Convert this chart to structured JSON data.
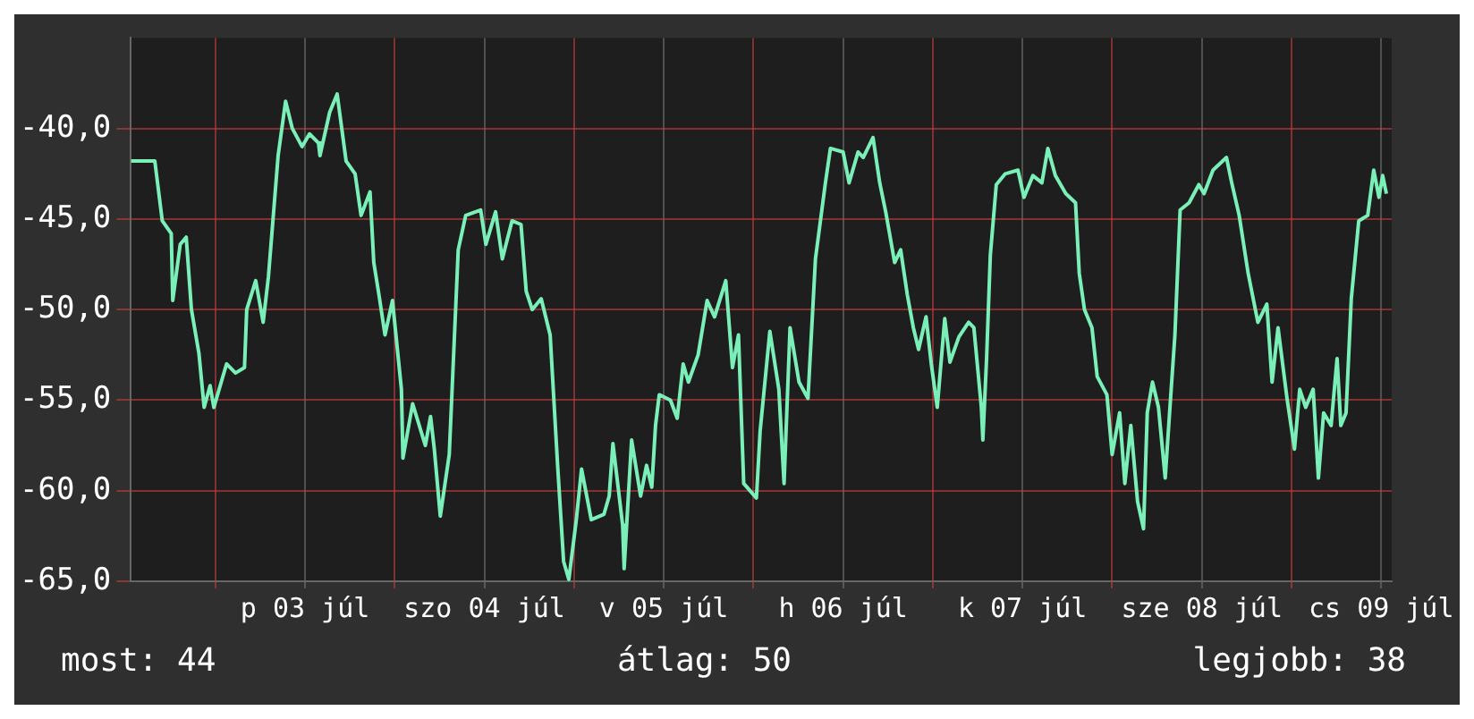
{
  "chart_data": {
    "type": "line",
    "annotations": [
      "most: 44",
      "átlag: 50",
      "legjobb: 38"
    ],
    "x": [
      "--07-02T12:42",
      "--07-02T15:54",
      "--07-02T16:54",
      "--07-02T18:06",
      "--07-02T18:18",
      "--07-02T19:18",
      "--07-02T20:06",
      "--07-02T20:48",
      "--07-02T21:48",
      "--07-02T22:30",
      "--07-02T23:18",
      "--07-02T23:48",
      "--07-03T01:30",
      "--07-03T02:42",
      "--07-03T03:54",
      "--07-03T04:12",
      "--07-03T05:24",
      "--07-03T06:24",
      "--07-03T07:06",
      "--07-03T08:24",
      "--07-03T09:24",
      "--07-03T10:18",
      "--07-03T11:36",
      "--07-03T12:36",
      "--07-03T13:48",
      "--07-03T14:00",
      "--07-03T15:18",
      "--07-03T16:18",
      "--07-03T17:30",
      "--07-03T18:42",
      "--07-03T19:30",
      "--07-03T20:42",
      "--07-03T21:12",
      "--07-03T21:54",
      "--07-03T22:42",
      "--07-03T23:42",
      "--07-04T00:54",
      "--07-04T01:06",
      "--07-04T02:24",
      "--07-04T04:06",
      "--07-04T04:48",
      "--07-04T05:18",
      "--07-04T06:06",
      "--07-04T07:18",
      "--07-04T08:30",
      "--07-04T09:30",
      "--07-04T11:30",
      "--07-04T12:12",
      "--07-04T13:30",
      "--07-04T14:24",
      "--07-04T15:42",
      "--07-04T16:54",
      "--07-04T17:36",
      "--07-04T18:24",
      "--07-04T19:36",
      "--07-04T20:48",
      "--07-04T21:48",
      "--07-04T22:36",
      "--07-04T23:18",
      "--07-05T00:18",
      "--07-05T01:00",
      "--07-05T02:18",
      "--07-05T04:00",
      "--07-05T04:42",
      "--07-05T05:12",
      "--07-05T06:30",
      "--07-05T06:42",
      "--07-05T07:42",
      "--07-05T08:54",
      "--07-05T09:42",
      "--07-05T10:24",
      "--07-05T10:54",
      "--07-05T11:24",
      "--07-05T12:54",
      "--07-05T13:48",
      "--07-05T14:36",
      "--07-05T15:18",
      "--07-05T16:36",
      "--07-05T17:48",
      "--07-05T18:48",
      "--07-05T20:18",
      "--07-05T21:12",
      "--07-05T22:00",
      "--07-05T22:42",
      "--07-06T00:24",
      "--07-06T00:54",
      "--07-06T02:12",
      "--07-06T03:24",
      "--07-06T04:06",
      "--07-06T04:54",
      "--07-06T06:06",
      "--07-06T07:18",
      "--07-06T08:18",
      "--07-06T09:36",
      "--07-06T10:18",
      "--07-06T12:00",
      "--07-06T12:48",
      "--07-06T14:00",
      "--07-06T14:42",
      "--07-06T16:00",
      "--07-06T16:54",
      "--07-06T17:42",
      "--07-06T18:54",
      "--07-06T19:42",
      "--07-06T20:36",
      "--07-06T21:24",
      "--07-06T22:06",
      "--07-06T23:06",
      "--07-06T23:48",
      "--07-07T00:36",
      "--07-07T01:36",
      "--07-07T02:18",
      "--07-07T03:30",
      "--07-07T04:48",
      "--07-07T05:30",
      "--07-07T06:30",
      "--07-07T06:42",
      "--07-07T07:12",
      "--07-07T07:42",
      "--07-07T08:30",
      "--07-07T09:42",
      "--07-07T11:24",
      "--07-07T12:12",
      "--07-07T13:24",
      "--07-07T14:36",
      "--07-07T15:24",
      "--07-07T16:24",
      "--07-07T17:48",
      "--07-07T19:06",
      "--07-07T19:36",
      "--07-07T20:18",
      "--07-07T21:18",
      "--07-07T22:00",
      "--07-07T23:18",
      "--07-08T00:00",
      "--07-08T01:00",
      "--07-08T01:42",
      "--07-08T02:30",
      "--07-08T03:24",
      "--07-08T04:12",
      "--07-08T04:42",
      "--07-08T05:24",
      "--07-08T06:12",
      "--07-08T07:06",
      "--07-08T07:54",
      "--07-08T08:24",
      "--07-08T09:06",
      "--07-08T10:18",
      "--07-08T11:36",
      "--07-08T12:18",
      "--07-08T13:30",
      "--07-08T15:18",
      "--07-08T16:00",
      "--07-08T17:00",
      "--07-08T18:12",
      "--07-08T19:30",
      "--07-08T20:42",
      "--07-08T21:24",
      "--07-08T22:12",
      "--07-08T23:24",
      "--07-09T00:24",
      "--07-09T01:06",
      "--07-09T01:54",
      "--07-09T02:54",
      "--07-09T03:36",
      "--07-09T04:18",
      "--07-09T05:18",
      "--07-09T06:06",
      "--07-09T06:36",
      "--07-09T07:18",
      "--07-09T08:00",
      "--07-09T09:00",
      "--07-09T10:12",
      "--07-09T11:00",
      "--07-09T11:42",
      "--07-09T12:12",
      "--07-09T12:42"
    ],
    "series": [
      {
        "color": "#7af0b8",
        "values": [
          -41.8,
          -41.8,
          -45.1,
          -45.8,
          -49.5,
          -46.4,
          -46.0,
          -50.0,
          -52.4,
          -55.4,
          -54.2,
          -55.4,
          -53.0,
          -53.5,
          -53.2,
          -50.0,
          -48.4,
          -50.7,
          -48.2,
          -41.5,
          -38.5,
          -40.0,
          -41.0,
          -40.3,
          -40.8,
          -41.5,
          -39.1,
          -38.1,
          -41.8,
          -42.5,
          -44.8,
          -43.5,
          -47.4,
          -49.2,
          -51.4,
          -49.5,
          -54.4,
          -58.2,
          -55.2,
          -57.5,
          -55.9,
          -57.7,
          -61.4,
          -58.0,
          -46.7,
          -44.8,
          -44.5,
          -46.4,
          -44.6,
          -47.2,
          -45.1,
          -45.3,
          -49.0,
          -50.0,
          -49.4,
          -51.4,
          -58.6,
          -63.9,
          -64.9,
          -61.6,
          -58.8,
          -61.6,
          -61.3,
          -60.3,
          -57.4,
          -61.9,
          -64.3,
          -57.2,
          -60.3,
          -58.6,
          -59.8,
          -56.4,
          -54.7,
          -55.0,
          -56.0,
          -53.0,
          -54.0,
          -52.5,
          -49.5,
          -50.4,
          -48.4,
          -53.2,
          -51.4,
          -59.6,
          -60.4,
          -56.7,
          -51.2,
          -54.4,
          -59.6,
          -51.0,
          -54.0,
          -54.9,
          -47.2,
          -43.1,
          -41.1,
          -41.3,
          -43.0,
          -41.3,
          -41.6,
          -40.5,
          -43.0,
          -44.6,
          -47.4,
          -46.7,
          -49.2,
          -51.0,
          -52.2,
          -50.4,
          -53.0,
          -55.4,
          -50.5,
          -52.9,
          -51.5,
          -50.7,
          -51.0,
          -55.4,
          -57.2,
          -52.7,
          -47.0,
          -43.1,
          -42.5,
          -42.3,
          -43.8,
          -42.6,
          -43.0,
          -41.1,
          -42.6,
          -43.6,
          -44.1,
          -48.0,
          -50.0,
          -51.0,
          -53.7,
          -54.7,
          -58.0,
          -55.7,
          -59.6,
          -56.4,
          -60.6,
          -62.1,
          -55.7,
          -54.0,
          -55.4,
          -59.3,
          -54.4,
          -51.4,
          -44.5,
          -44.1,
          -43.1,
          -43.6,
          -42.3,
          -41.6,
          -43.0,
          -44.8,
          -48.0,
          -50.7,
          -49.7,
          -54.0,
          -51.0,
          -54.9,
          -57.7,
          -54.4,
          -55.4,
          -54.4,
          -59.3,
          -55.7,
          -56.4,
          -52.7,
          -56.4,
          -55.7,
          -49.4,
          -45.1,
          -44.8,
          -42.3,
          -43.8,
          -42.6,
          -43.6
        ]
      }
    ],
    "xlim": [
      "--07-02T12:42",
      "--07-09T13:24"
    ],
    "xticks": [
      {
        "value": "--07-03T00:00",
        "label": null
      },
      {
        "value": "--07-03T12:00",
        "label": "p 03 júl"
      },
      {
        "value": "--07-04T00:00",
        "label": null
      },
      {
        "value": "--07-04T12:00",
        "label": "szo 04 júl"
      },
      {
        "value": "--07-05T00:00",
        "label": null
      },
      {
        "value": "--07-05T12:00",
        "label": "v 05 júl"
      },
      {
        "value": "--07-06T00:00",
        "label": null
      },
      {
        "value": "--07-06T12:00",
        "label": "h 06 júl"
      },
      {
        "value": "--07-07T00:00",
        "label": null
      },
      {
        "value": "--07-07T12:00",
        "label": "k 07 júl"
      },
      {
        "value": "--07-08T00:00",
        "label": null
      },
      {
        "value": "--07-08T12:00",
        "label": "sze 08 júl"
      },
      {
        "value": "--07-09T00:00",
        "label": null
      },
      {
        "value": "--07-09T12:00",
        "label": "cs 09 júl"
      }
    ],
    "ylim": [
      -65,
      -35
    ],
    "yticks": [
      {
        "value": -65,
        "label": "-65,0"
      },
      {
        "value": -60,
        "label": "-60,0"
      },
      {
        "value": -55,
        "label": "-55,0"
      },
      {
        "value": -50,
        "label": "-50,0"
      },
      {
        "value": -45,
        "label": "-45,0"
      },
      {
        "value": -40,
        "label": "-40,0"
      }
    ],
    "grid": true,
    "legend": false,
    "marker": "none",
    "line_style": "solid"
  }
}
